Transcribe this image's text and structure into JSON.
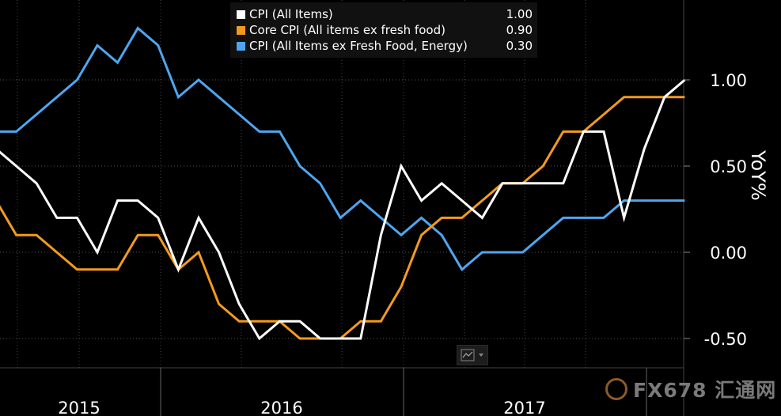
{
  "chart_data": {
    "type": "line",
    "x": [
      "2015-01",
      "2015-02",
      "2015-03",
      "2015-04",
      "2015-05",
      "2015-06",
      "2015-07",
      "2015-08",
      "2015-09",
      "2015-10",
      "2015-11",
      "2015-12",
      "2016-01",
      "2016-02",
      "2016-03",
      "2016-04",
      "2016-05",
      "2016-06",
      "2016-07",
      "2016-08",
      "2016-09",
      "2016-10",
      "2016-11",
      "2016-12",
      "2017-01",
      "2017-02",
      "2017-03",
      "2017-04",
      "2017-05",
      "2017-06",
      "2017-07",
      "2017-08",
      "2017-09",
      "2017-10",
      "2017-11"
    ],
    "series": [
      {
        "name": "CPI (All Items)",
        "color": "#ffffff",
        "last": "1.00",
        "values": [
          0.6,
          0.5,
          0.4,
          0.2,
          0.2,
          0.0,
          0.3,
          0.3,
          0.2,
          -0.1,
          0.2,
          0.0,
          -0.3,
          -0.5,
          -0.4,
          -0.4,
          -0.5,
          -0.5,
          -0.5,
          0.1,
          0.5,
          0.3,
          0.4,
          0.3,
          0.2,
          0.4,
          0.4,
          0.4,
          0.4,
          0.7,
          0.7,
          0.2,
          0.6,
          0.9,
          1.0
        ]
      },
      {
        "name": "Core CPI (All items ex fresh food)",
        "color": "#f39a1e",
        "last": "0.90",
        "values": [
          0.3,
          0.1,
          0.1,
          0.0,
          -0.1,
          -0.1,
          -0.1,
          0.1,
          0.1,
          -0.1,
          0.0,
          -0.3,
          -0.4,
          -0.4,
          -0.4,
          -0.5,
          -0.5,
          -0.5,
          -0.4,
          -0.4,
          -0.2,
          0.1,
          0.2,
          0.2,
          0.3,
          0.4,
          0.4,
          0.5,
          0.7,
          0.7,
          0.8,
          0.9,
          0.9,
          0.9,
          0.9
        ]
      },
      {
        "name": "CPI (All Items ex Fresh Food, Energy)",
        "color": "#4ea6f0",
        "last": "0.30",
        "values": [
          0.7,
          0.7,
          0.8,
          0.9,
          1.0,
          1.2,
          1.1,
          1.3,
          1.2,
          0.9,
          1.0,
          0.9,
          0.8,
          0.7,
          0.7,
          0.5,
          0.4,
          0.2,
          0.3,
          0.2,
          0.1,
          0.2,
          0.1,
          -0.1,
          0.0,
          0.0,
          0.0,
          0.1,
          0.2,
          0.2,
          0.2,
          0.3,
          0.3,
          0.3,
          0.3
        ]
      }
    ],
    "ylabel": "YoY%",
    "yticks": [
      "1.00",
      "0.50",
      "0.00",
      "-0.50"
    ],
    "ylim": [
      -0.64,
      1.38
    ],
    "years": [
      "2015",
      "2016",
      "2017"
    ],
    "grid": true,
    "legend_position": "top-center"
  }
}
